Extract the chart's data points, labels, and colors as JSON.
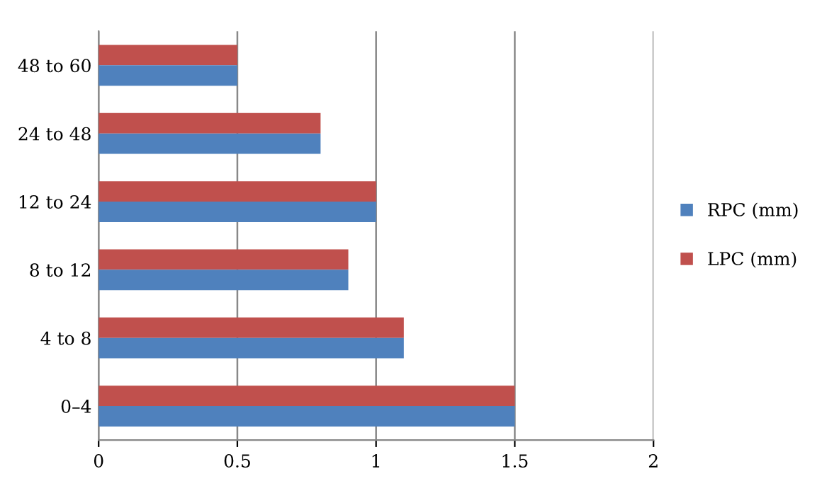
{
  "chart_data": {
    "type": "bar",
    "orientation": "horizontal",
    "categories": [
      "48 to 60",
      "24 to 48",
      "12 to 24",
      "8 to 12",
      "4 to 8",
      "0–4"
    ],
    "series": [
      {
        "name": "LPC (mm)",
        "color": "#c0504d",
        "values": [
          0.5,
          0.8,
          1.0,
          0.9,
          1.1,
          1.5
        ]
      },
      {
        "name": "RPC (mm)",
        "color": "#4f81bd",
        "values": [
          0.5,
          0.8,
          1.0,
          0.9,
          1.1,
          1.5
        ]
      }
    ],
    "xlim": [
      0,
      2
    ],
    "xticks": [
      0,
      0.5,
      1,
      1.5,
      2
    ],
    "grid": "x",
    "legend": "right"
  }
}
